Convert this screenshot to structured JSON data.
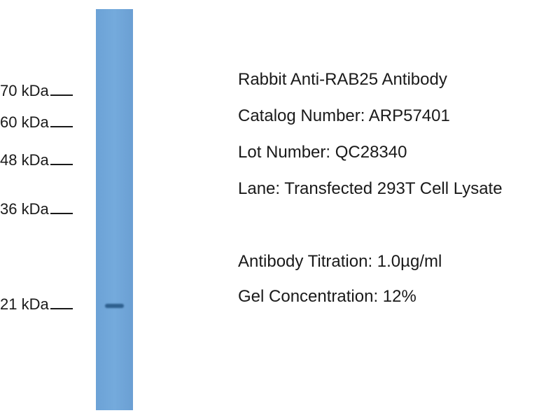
{
  "blot": {
    "lane_color": "#70a6d9",
    "band_color": "#2e5f8e",
    "markers": [
      "70 kDa",
      "60 kDa",
      "48 kDa",
      "36 kDa",
      "21 kDa"
    ]
  },
  "info": {
    "title": "Rabbit Anti-RAB25 Antibody",
    "catalog": "Catalog Number: ARP57401",
    "lot": "Lot Number: QC28340",
    "lane": "Lane: Transfected 293T Cell Lysate",
    "titration": "Antibody Titration: 1.0µg/ml",
    "gel": "Gel Concentration: 12%"
  }
}
